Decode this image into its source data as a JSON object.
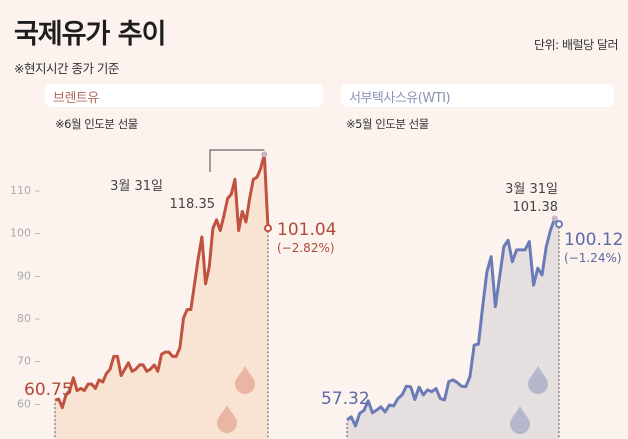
{
  "header": {
    "title": "국제유가 추이",
    "unit": "단위: 배럴당 달러",
    "note": "※현지시간 종가 기준"
  },
  "colors": {
    "background": "#fcf3ee",
    "brent": "#c0533f",
    "brent_fill": "#f9e3d3",
    "wti": "#6b7bb8",
    "wti_fill": "#e5e0df"
  },
  "chart_data": [
    {
      "type": "area",
      "title": "브렌트유",
      "subtitle": "※6월 인도분 선물",
      "yticks": [
        60,
        70,
        80,
        90,
        100,
        110
      ],
      "ylim": [
        55,
        120
      ],
      "start_label": "60.75",
      "peak": {
        "date": "3월 31일",
        "value": "118.35"
      },
      "last": {
        "value": "101.04",
        "change": "(−2.82%)"
      },
      "values": [
        60.75,
        61,
        59,
        62,
        63,
        66,
        63,
        63.5,
        63,
        64.5,
        64.5,
        63.5,
        65.5,
        65,
        67,
        68,
        71,
        71,
        66.5,
        68,
        69.5,
        67.5,
        68,
        69,
        69,
        67.5,
        68,
        69,
        67.5,
        71.5,
        72,
        72,
        71,
        71,
        73,
        80,
        82,
        82,
        88,
        94,
        99,
        88,
        92,
        101,
        103,
        100.5,
        104,
        108,
        109,
        112.5,
        100.5,
        105,
        102.5,
        108,
        112.5,
        113,
        115,
        118.35,
        101.04
      ]
    },
    {
      "type": "area",
      "title": "서부텍사스유(WTI)",
      "subtitle": "※5월 인도분 선물",
      "start_label": "57.32",
      "peak": {
        "date": "3월 31일",
        "value": "101.38"
      },
      "last": {
        "value": "100.12",
        "change": "(−1.24%)"
      },
      "values": [
        57.32,
        58,
        56,
        58.8,
        59.4,
        61.5,
        58.9,
        59.5,
        60.2,
        59.1,
        60.6,
        60.4,
        62,
        62.8,
        64.7,
        64.6,
        61.8,
        64.5,
        62.8,
        63.9,
        63.5,
        64.2,
        62,
        61.7,
        65.7,
        66.1,
        65.5,
        64.7,
        64.6,
        66.8,
        73.7,
        73.9,
        82.1,
        89.7,
        93,
        82.1,
        88.6,
        95.2,
        96.6,
        91.9,
        94.5,
        94.5,
        94.5,
        96.3,
        86.8,
        90.5,
        89,
        95.2,
        98.8,
        101.38,
        100.12
      ]
    }
  ]
}
